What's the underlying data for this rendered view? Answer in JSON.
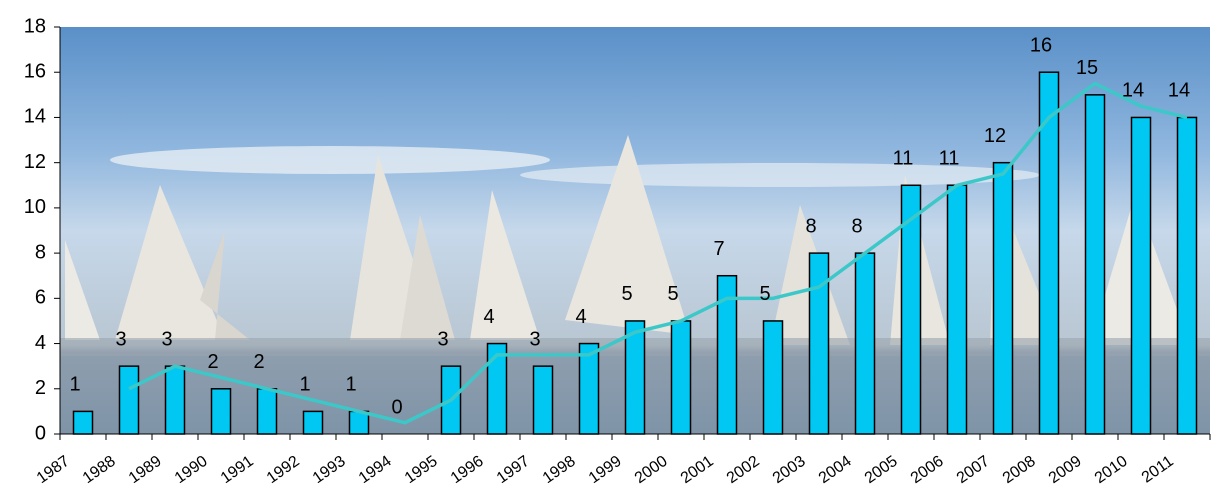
{
  "chart_data": {
    "type": "bar",
    "categories": [
      "1987",
      "1988",
      "1989",
      "1990",
      "1991",
      "1992",
      "1993",
      "1994",
      "1995",
      "1996",
      "1997",
      "1998",
      "1999",
      "2000",
      "2001",
      "2002",
      "2003",
      "2004",
      "2005",
      "2006",
      "2007",
      "2008",
      "2009",
      "2010",
      "2011"
    ],
    "values": [
      1,
      3,
      3,
      2,
      2,
      1,
      1,
      0,
      3,
      4,
      3,
      4,
      5,
      5,
      7,
      5,
      8,
      8,
      11,
      11,
      12,
      16,
      15,
      14,
      14
    ],
    "color": "#00c8f2",
    "series": [
      {
        "type": "line",
        "color": "#3cc8c8",
        "values": [
          null,
          2,
          3,
          2.5,
          2,
          1.5,
          1,
          0.5,
          1.5,
          3.5,
          3.5,
          3.5,
          4.5,
          5,
          6,
          6,
          6.5,
          8,
          9.5,
          11,
          11.5,
          14,
          15.5,
          14.5,
          14
        ]
      }
    ],
    "ylim": [
      0,
      18
    ],
    "yticks": [
      0,
      2,
      4,
      6,
      8,
      10,
      12,
      14,
      16,
      18
    ],
    "data_labels": true
  }
}
